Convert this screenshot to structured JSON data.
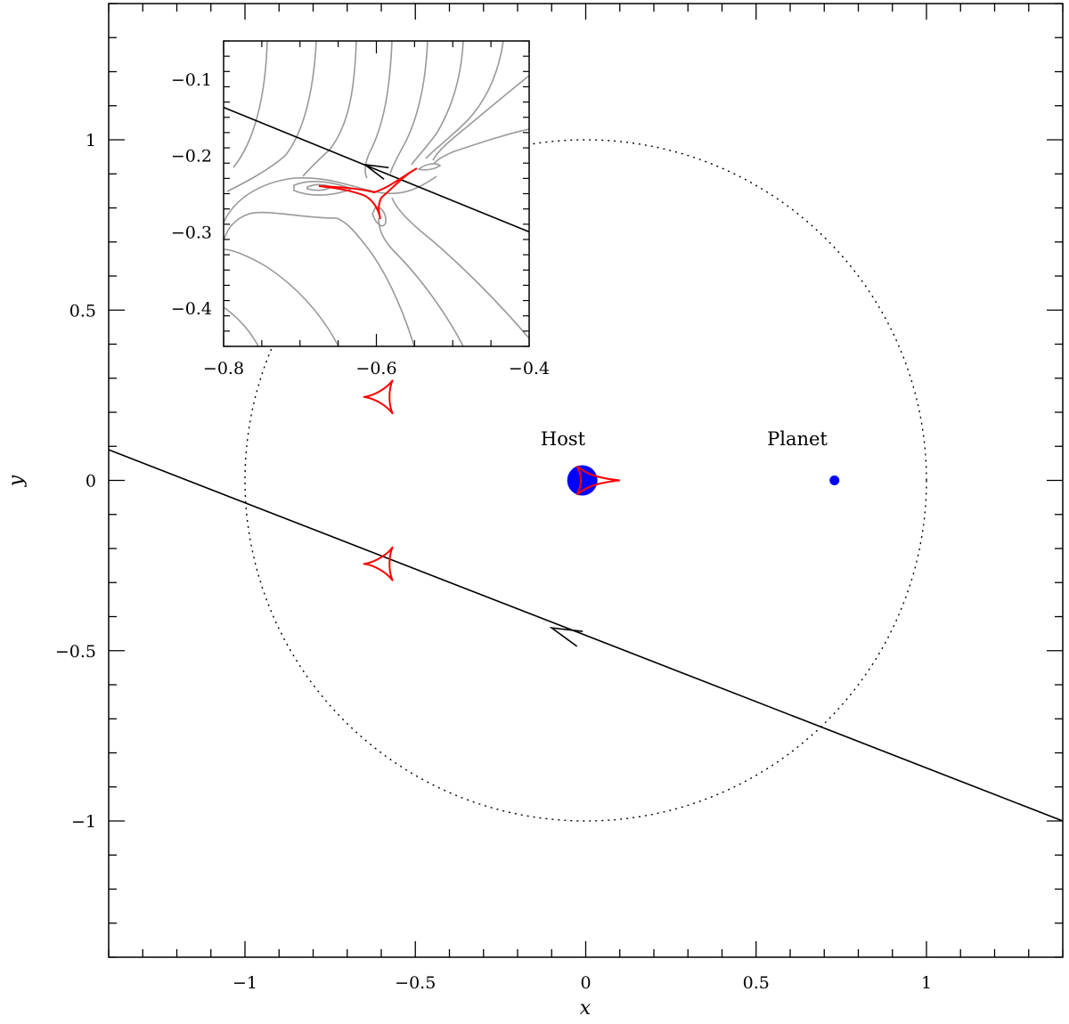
{
  "chart_data": [
    {
      "type": "scatter",
      "xlabel": "x",
      "ylabel": "y",
      "xlim": [
        -1.4,
        1.4
      ],
      "ylim": [
        -1.4,
        1.4
      ],
      "xticks": [
        -1,
        -0.5,
        0,
        0.5,
        1
      ],
      "yticks": [
        -1,
        -0.5,
        0,
        0.5,
        1
      ],
      "xtick_labels": [
        "−1",
        "−0.5",
        "0",
        "0.5",
        "1"
      ],
      "ytick_labels": [
        "−1",
        "−0.5",
        "0",
        "0.5",
        "1"
      ],
      "einstein_ring": {
        "center": [
          0,
          0
        ],
        "radius": 1.0,
        "style": "dotted"
      },
      "bodies": [
        {
          "label": "Host",
          "x": -0.01,
          "y": 0.0,
          "size": "large",
          "color": "#0000ff"
        },
        {
          "label": "Planet",
          "x": 0.73,
          "y": 0.0,
          "size": "small",
          "color": "#0000ff"
        }
      ],
      "annotations": [
        {
          "text": "Host",
          "x": -0.06,
          "y": 0.12
        },
        {
          "text": "Planet",
          "x": 0.62,
          "y": 0.12
        }
      ],
      "source_trajectory": {
        "from": [
          1.4,
          -1.0
        ],
        "to": [
          -1.4,
          0.09
        ],
        "arrow_at": [
          -0.1,
          -0.433
        ],
        "direction": "toward upper-left"
      },
      "caustics": [
        {
          "type": "central",
          "center": [
            0.0,
            0.0
          ],
          "tip_x": 0.1,
          "color": "#ff0000"
        },
        {
          "type": "planetary",
          "center": [
            -0.595,
            0.245
          ],
          "color": "#ff0000"
        },
        {
          "type": "planetary",
          "center": [
            -0.595,
            -0.245
          ],
          "color": "#ff0000"
        }
      ],
      "colors": {
        "caustic": "#ff0000",
        "bodies": "#0000ff",
        "trajectory": "#000000",
        "ring": "#000000"
      }
    },
    {
      "type": "scatter",
      "inset": true,
      "placement": "top-left",
      "xlim": [
        -0.8,
        -0.4
      ],
      "ylim": [
        -0.45,
        -0.05
      ],
      "xticks": [
        -0.8,
        -0.6,
        -0.4
      ],
      "yticks": [
        -0.1,
        -0.2,
        -0.3,
        -0.4
      ],
      "xtick_labels": [
        "−0.8",
        "−0.6",
        "−0.4"
      ],
      "ytick_labels": [
        "−0.1",
        "−0.2",
        "−0.3",
        "−0.4"
      ],
      "source_trajectory": {
        "from": [
          -0.4,
          -0.3
        ],
        "to": [
          -0.8,
          -0.137
        ],
        "arrow_at": [
          -0.615,
          -0.212
        ]
      },
      "caustic": {
        "center": [
          -0.595,
          -0.245
        ],
        "color": "#ff0000"
      },
      "contours": {
        "color": "#999999",
        "description": "magnification contours"
      }
    }
  ]
}
